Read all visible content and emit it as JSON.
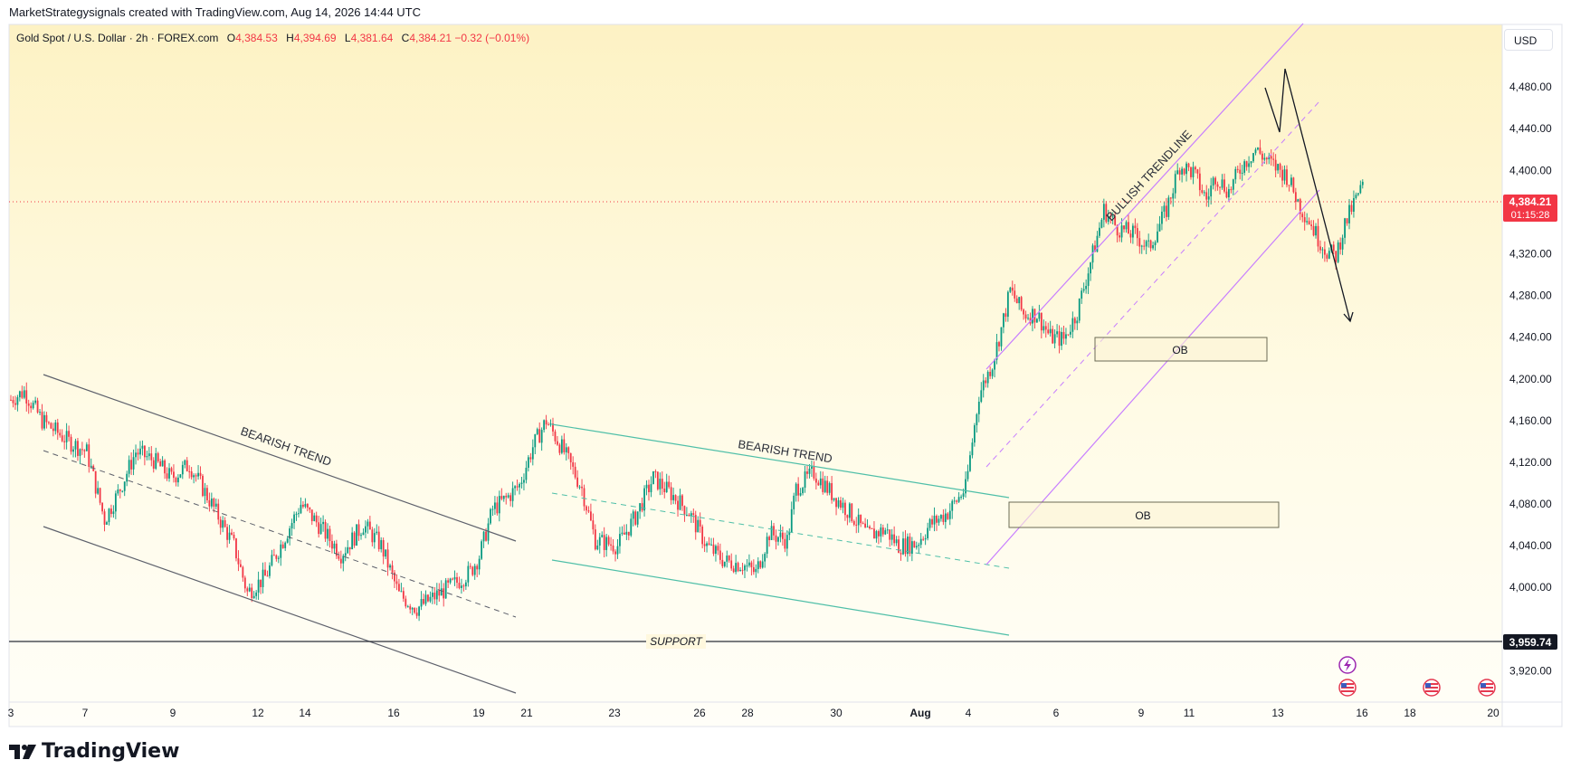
{
  "credit": "MarketStrategysignals created with TradingView.com, Aug 14, 2026 14:44 UTC",
  "symbol": {
    "name": "Gold Spot / U.S. Dollar · 2h · FOREX.com",
    "open_key": "O",
    "open": "4,384.53",
    "high_key": "H",
    "high": "4,394.69",
    "low_key": "L",
    "low": "4,381.64",
    "close_key": "C",
    "close": "4,384.21",
    "change": "−0.32 (−0.01%)"
  },
  "currency": "USD",
  "logo": "TradingView",
  "colors": {
    "background_top": "#fdf5cf",
    "background_bottom": "#fffdf5",
    "up_candle": "#089981",
    "down_candle": "#f23645",
    "price_line": "#f23645",
    "channel_bearish_1": "#5d606b",
    "channel_bearish_2": "#4fbfa8",
    "channel_bullish": "#c77dff",
    "support": "#2a2e39",
    "forecast": "#131722"
  },
  "chart_data": {
    "type": "candlestick",
    "symbol": "XAUUSD",
    "timeframe": "2h",
    "ylim": [
      3890,
      4540
    ],
    "y_ticks": [
      "4,480.00",
      "4,440.00",
      "4,400.00",
      "4,360.00",
      "4,320.00",
      "4,280.00",
      "4,240.00",
      "4,200.00",
      "4,160.00",
      "4,120.00",
      "4,080.00",
      "4,040.00",
      "4,000.00",
      "3,920.00"
    ],
    "y_tick_values": [
      4480,
      4440,
      4400,
      4360,
      4320,
      4280,
      4240,
      4200,
      4160,
      4120,
      4080,
      4040,
      4000,
      3920
    ],
    "x_ticks": [
      "3",
      "7",
      "9",
      "12",
      "14",
      "16",
      "19",
      "21",
      "23",
      "26",
      "28",
      "30",
      "Aug",
      "4",
      "6",
      "9",
      "11",
      "13",
      "16",
      "18",
      "20"
    ],
    "x_tick_bold": [
      false,
      false,
      false,
      false,
      false,
      false,
      false,
      false,
      false,
      false,
      false,
      false,
      true,
      false,
      false,
      false,
      false,
      false,
      false,
      false,
      false
    ],
    "current_price": {
      "value": 4384.21,
      "label": "4,384.21",
      "countdown": "01:15:28"
    },
    "support_level": {
      "value": 3959.74,
      "label": "3,959.74",
      "text": "SUPPORT"
    },
    "price_path_anchors": [
      [
        0,
        4180
      ],
      [
        6,
        4188
      ],
      [
        14,
        4160
      ],
      [
        26,
        4140
      ],
      [
        34,
        4130
      ],
      [
        42,
        4065
      ],
      [
        48,
        4090
      ],
      [
        56,
        4130
      ],
      [
        64,
        4122
      ],
      [
        72,
        4105
      ],
      [
        80,
        4118
      ],
      [
        90,
        4080
      ],
      [
        100,
        4040
      ],
      [
        106,
        3995
      ],
      [
        114,
        4010
      ],
      [
        122,
        4045
      ],
      [
        130,
        4080
      ],
      [
        138,
        4060
      ],
      [
        148,
        4032
      ],
      [
        158,
        4060
      ],
      [
        166,
        4040
      ],
      [
        174,
        3993
      ],
      [
        182,
        3980
      ],
      [
        192,
        3994
      ],
      [
        200,
        4005
      ],
      [
        206,
        4015
      ],
      [
        210,
        4030
      ],
      [
        216,
        4075
      ],
      [
        222,
        4085
      ],
      [
        228,
        4098
      ],
      [
        234,
        4135
      ],
      [
        240,
        4160
      ],
      [
        248,
        4130
      ],
      [
        256,
        4095
      ],
      [
        262,
        4045
      ],
      [
        272,
        4040
      ],
      [
        280,
        4068
      ],
      [
        288,
        4105
      ],
      [
        296,
        4090
      ],
      [
        304,
        4072
      ],
      [
        312,
        4040
      ],
      [
        320,
        4025
      ],
      [
        328,
        4022
      ],
      [
        334,
        4014
      ],
      [
        340,
        4052
      ],
      [
        348,
        4045
      ],
      [
        352,
        4095
      ],
      [
        360,
        4110
      ],
      [
        368,
        4090
      ],
      [
        376,
        4072
      ],
      [
        384,
        4050
      ],
      [
        392,
        4055
      ],
      [
        398,
        4040
      ],
      [
        406,
        4042
      ],
      [
        412,
        4060
      ],
      [
        420,
        4072
      ],
      [
        428,
        4095
      ],
      [
        434,
        4185
      ],
      [
        440,
        4215
      ],
      [
        444,
        4248
      ],
      [
        448,
        4285
      ],
      [
        454,
        4262
      ],
      [
        460,
        4262
      ],
      [
        466,
        4240
      ],
      [
        472,
        4238
      ],
      [
        478,
        4264
      ],
      [
        486,
        4328
      ],
      [
        490,
        4362
      ],
      [
        496,
        4345
      ],
      [
        504,
        4338
      ],
      [
        510,
        4325
      ],
      [
        518,
        4362
      ],
      [
        524,
        4405
      ],
      [
        530,
        4398
      ],
      [
        536,
        4372
      ],
      [
        540,
        4395
      ],
      [
        546,
        4380
      ],
      [
        552,
        4405
      ],
      [
        558,
        4420
      ],
      [
        564,
        4408
      ],
      [
        572,
        4395
      ],
      [
        578,
        4365
      ],
      [
        582,
        4352
      ],
      [
        586,
        4335
      ],
      [
        590,
        4322
      ],
      [
        594,
        4318
      ],
      [
        598,
        4348
      ],
      [
        602,
        4368
      ],
      [
        606,
        4385
      ]
    ],
    "annotations": [
      {
        "type": "channel",
        "label": "BEARISH TREND"
      },
      {
        "type": "channel",
        "label": "BEARISH TREND"
      },
      {
        "type": "channel",
        "label": "BULLISH TRENDLINE"
      },
      {
        "type": "zone",
        "label": "OB"
      },
      {
        "type": "zone",
        "label": "OB"
      },
      {
        "type": "forecast_path",
        "label": ""
      }
    ]
  }
}
